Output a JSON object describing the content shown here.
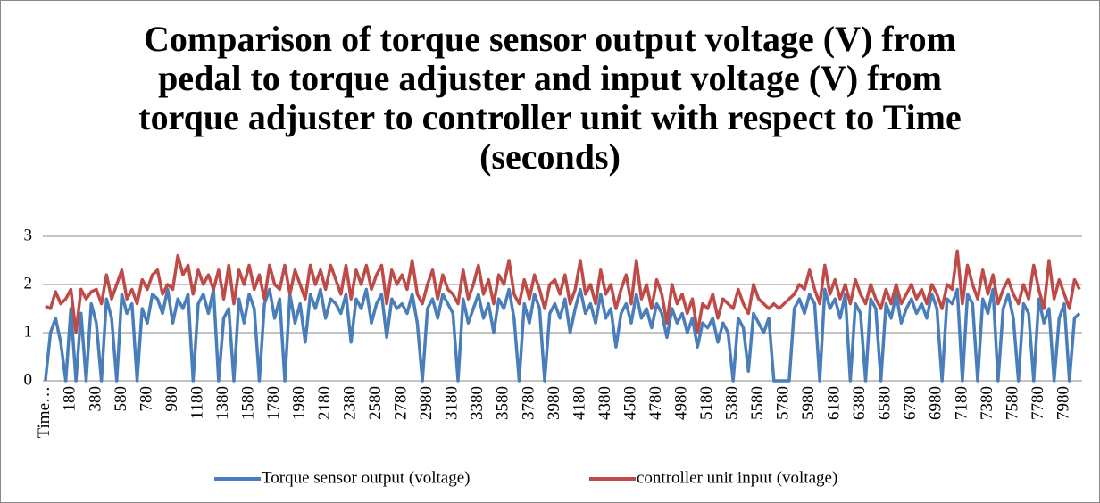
{
  "chart_data": {
    "type": "line",
    "title": "Comparison of torque sensor output voltage (V) from pedal to torque adjuster and input voltage (V) from torque adjuster to controller unit with respect to Time (seconds)",
    "categories": [
      "Time…",
      null,
      null,
      null,
      null,
      "180",
      null,
      null,
      null,
      null,
      "380",
      null,
      null,
      null,
      null,
      "580",
      null,
      null,
      null,
      null,
      "780",
      null,
      null,
      null,
      null,
      "980",
      null,
      null,
      null,
      null,
      "1180",
      null,
      null,
      null,
      null,
      "1380",
      null,
      null,
      null,
      null,
      "1580",
      null,
      null,
      null,
      null,
      "1780",
      null,
      null,
      null,
      null,
      "1980",
      null,
      null,
      null,
      null,
      "2180",
      null,
      null,
      null,
      null,
      "2380",
      null,
      null,
      null,
      null,
      "2580",
      null,
      null,
      null,
      null,
      "2780",
      null,
      null,
      null,
      null,
      "2980",
      null,
      null,
      null,
      null,
      "3180",
      null,
      null,
      null,
      null,
      "3380",
      null,
      null,
      null,
      null,
      "3580",
      null,
      null,
      null,
      null,
      "3780",
      null,
      null,
      null,
      null,
      "3980",
      null,
      null,
      null,
      null,
      "4180",
      null,
      null,
      null,
      null,
      "4380",
      null,
      null,
      null,
      null,
      "4580",
      null,
      null,
      null,
      null,
      "4780",
      null,
      null,
      null,
      null,
      "4980",
      null,
      null,
      null,
      null,
      "5180",
      null,
      null,
      null,
      null,
      "5380",
      null,
      null,
      null,
      null,
      "5580",
      null,
      null,
      null,
      null,
      "5780",
      null,
      null,
      null,
      null,
      "5980",
      null,
      null,
      null,
      null,
      "6180",
      null,
      null,
      null,
      null,
      "6380",
      null,
      null,
      null,
      null,
      "6580",
      null,
      null,
      null,
      null,
      "6780",
      null,
      null,
      null,
      null,
      "6980",
      null,
      null,
      null,
      null,
      "7180",
      null,
      null,
      null,
      null,
      "7380",
      null,
      null,
      null,
      null,
      "7580",
      null,
      null,
      null,
      null,
      "7780",
      null,
      null,
      null,
      null,
      "7980",
      null,
      null,
      null
    ],
    "series": [
      {
        "name": "Torque sensor output (voltage)",
        "color": "#4a7ebb",
        "values": [
          0,
          1.0,
          1.3,
          0.8,
          0,
          1.5,
          0,
          1.4,
          0,
          1.6,
          1.2,
          0,
          1.7,
          1.3,
          0,
          1.8,
          1.4,
          1.6,
          0,
          1.5,
          1.2,
          1.8,
          1.7,
          1.4,
          1.9,
          1.2,
          1.7,
          1.5,
          1.8,
          0,
          1.6,
          1.8,
          1.4,
          1.9,
          0,
          1.3,
          1.5,
          0,
          1.7,
          1.2,
          1.8,
          1.5,
          0,
          1.6,
          1.9,
          1.3,
          1.7,
          0,
          1.8,
          1.2,
          1.6,
          0.8,
          1.8,
          1.5,
          1.9,
          1.3,
          1.7,
          1.6,
          1.4,
          1.8,
          0.8,
          1.7,
          1.5,
          1.9,
          1.2,
          1.6,
          1.8,
          0.9,
          1.7,
          1.5,
          1.6,
          1.4,
          1.8,
          1.2,
          0,
          1.5,
          1.7,
          1.3,
          1.8,
          1.6,
          1.4,
          0,
          1.7,
          1.2,
          1.5,
          1.8,
          1.3,
          1.6,
          1.0,
          1.7,
          1.5,
          1.9,
          1.3,
          0,
          1.6,
          1.2,
          1.8,
          1.5,
          0,
          1.4,
          1.6,
          1.3,
          1.7,
          1.0,
          1.5,
          1.9,
          1.4,
          1.6,
          1.2,
          1.8,
          1.3,
          1.5,
          0.7,
          1.4,
          1.6,
          1.2,
          1.8,
          1.3,
          1.5,
          1.1,
          1.6,
          1.4,
          0.9,
          1.5,
          1.2,
          1.4,
          1.0,
          1.3,
          0.7,
          1.2,
          1.1,
          1.3,
          0.8,
          1.2,
          1.0,
          0,
          1.3,
          1.1,
          0.2,
          1.4,
          1.2,
          1.0,
          1.3,
          0,
          0,
          0,
          0,
          1.5,
          1.7,
          1.4,
          1.8,
          1.6,
          0,
          1.9,
          1.5,
          1.7,
          1.3,
          1.8,
          0,
          1.6,
          1.4,
          0,
          1.7,
          1.5,
          0,
          1.6,
          1.3,
          1.8,
          1.2,
          1.5,
          1.7,
          1.4,
          1.6,
          1.3,
          1.8,
          1.5,
          0,
          1.7,
          1.6,
          1.9,
          0,
          1.8,
          1.6,
          0,
          1.7,
          1.4,
          1.9,
          0,
          1.5,
          1.8,
          1.3,
          0,
          1.6,
          1.4,
          0,
          1.7,
          1.2,
          1.5,
          0,
          1.3,
          1.6,
          0,
          1.3,
          1.4
        ]
      },
      {
        "name": "controller unit input (voltage)",
        "color": "#be4b48",
        "values": [
          1.55,
          1.5,
          1.85,
          1.6,
          1.7,
          1.9,
          1.0,
          1.9,
          1.7,
          1.85,
          1.9,
          1.6,
          2.2,
          1.7,
          2.0,
          2.3,
          1.7,
          1.9,
          1.6,
          2.1,
          1.9,
          2.2,
          2.3,
          1.8,
          2.0,
          1.9,
          2.6,
          2.2,
          2.4,
          1.8,
          2.3,
          2.0,
          2.2,
          1.9,
          2.3,
          1.7,
          2.4,
          1.6,
          2.3,
          2.0,
          2.4,
          1.9,
          2.2,
          1.7,
          2.4,
          2.0,
          1.9,
          2.4,
          1.8,
          2.3,
          2.0,
          1.7,
          2.4,
          2.0,
          2.3,
          1.9,
          2.4,
          2.1,
          1.8,
          2.4,
          1.7,
          2.3,
          2.0,
          2.4,
          1.9,
          2.2,
          2.4,
          1.6,
          2.3,
          2.0,
          2.2,
          1.9,
          2.5,
          1.8,
          1.6,
          2.0,
          2.3,
          1.7,
          2.2,
          1.9,
          1.8,
          1.6,
          2.3,
          1.7,
          2.0,
          2.4,
          1.8,
          2.1,
          1.6,
          2.2,
          2.0,
          2.5,
          1.8,
          1.6,
          2.1,
          1.7,
          2.2,
          1.9,
          1.5,
          2.0,
          2.1,
          1.8,
          2.2,
          1.6,
          1.9,
          2.5,
          1.8,
          2.0,
          1.6,
          2.3,
          1.8,
          2.0,
          1.5,
          1.9,
          2.2,
          1.6,
          2.5,
          1.7,
          2.0,
          1.5,
          2.1,
          1.8,
          1.2,
          2.0,
          1.6,
          1.8,
          1.4,
          1.7,
          1.0,
          1.6,
          1.5,
          1.8,
          1.3,
          1.7,
          1.6,
          1.5,
          1.9,
          1.6,
          1.4,
          2.0,
          1.7,
          1.6,
          1.5,
          1.6,
          1.5,
          1.6,
          1.7,
          1.8,
          2.0,
          1.9,
          2.3,
          1.9,
          1.6,
          2.4,
          1.8,
          2.1,
          1.7,
          2.0,
          1.6,
          2.1,
          1.8,
          1.6,
          2.0,
          1.7,
          1.5,
          1.9,
          1.6,
          2.0,
          1.6,
          1.8,
          2.0,
          1.7,
          1.9,
          1.6,
          2.0,
          1.8,
          1.5,
          2.0,
          1.9,
          2.7,
          1.6,
          2.4,
          2.0,
          1.7,
          2.3,
          1.8,
          2.2,
          1.6,
          1.9,
          2.1,
          1.8,
          1.6,
          2.0,
          1.7,
          2.4,
          1.9,
          1.5,
          2.5,
          1.7,
          2.1,
          1.8,
          1.5,
          2.1,
          1.9
        ]
      }
    ],
    "ylim": [
      0,
      3
    ],
    "yticks": [
      0,
      1,
      2,
      3
    ],
    "grid": true,
    "legend": "bottom"
  }
}
